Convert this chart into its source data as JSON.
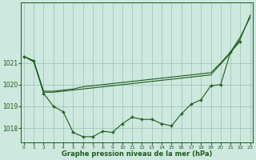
{
  "hours": [
    0,
    1,
    2,
    3,
    4,
    5,
    6,
    7,
    8,
    9,
    10,
    11,
    12,
    13,
    14,
    15,
    16,
    17,
    18,
    19,
    20,
    21,
    22,
    23
  ],
  "series_main": [
    1021.3,
    1021.1,
    1019.6,
    1019.0,
    1018.75,
    1017.8,
    1017.6,
    1017.6,
    1017.85,
    1017.8,
    1018.2,
    1018.5,
    1018.4,
    1018.4,
    1018.2,
    1018.1,
    1018.65,
    1019.1,
    1019.3,
    1019.95,
    1020.0,
    1021.5,
    1022.0,
    null
  ],
  "series_flat_top1": [
    1021.3,
    1021.1,
    1019.7,
    1019.7,
    1019.75,
    1019.8,
    1019.9,
    1019.95,
    1020.0,
    1020.05,
    1020.1,
    1020.15,
    1020.2,
    1020.25,
    1020.3,
    1020.35,
    1020.4,
    1020.45,
    1020.5,
    1020.55,
    1021.0,
    1021.5,
    1022.2,
    1023.1
  ],
  "series_flat_top2": [
    1021.3,
    1021.05,
    1019.65,
    1019.65,
    1019.7,
    1019.75,
    1019.8,
    1019.85,
    1019.9,
    1019.95,
    1020.0,
    1020.05,
    1020.1,
    1020.15,
    1020.2,
    1020.25,
    1020.3,
    1020.35,
    1020.4,
    1020.45,
    1020.95,
    1021.45,
    1022.1,
    1023.2
  ],
  "bg_color": "#cde8de",
  "line_color": "#1e5c1e",
  "grid_color": "#9dbfb0",
  "xlabel": "Graphe pression niveau de la mer (hPa)",
  "ylim": [
    1017.35,
    1023.8
  ],
  "yticks": [
    1018,
    1019,
    1020,
    1021
  ],
  "xlim": [
    -0.3,
    23.3
  ]
}
